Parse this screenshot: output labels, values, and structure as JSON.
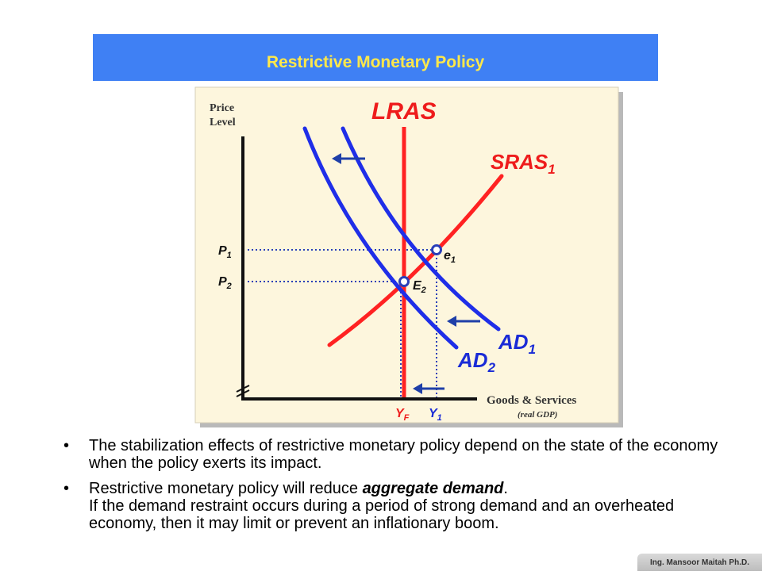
{
  "slide": {
    "title": "Restrictive Monetary Policy",
    "watermark": "Ing. Mansoor Maitah Ph.D."
  },
  "diagram": {
    "y_axis_label_line1": "Price",
    "y_axis_label_line2": "Level",
    "x_axis_label": "Goods & Services",
    "x_axis_sublabel": "(real GDP)",
    "lras_label": "LRAS",
    "sras_label": "SRAS",
    "sras_sub": "1",
    "ad1_label": "AD",
    "ad1_sub": "1",
    "ad2_label": "AD",
    "ad2_sub": "2",
    "p1_label": "P",
    "p1_sub": "1",
    "p2_label": "P",
    "p2_sub": "2",
    "e1_label": "e",
    "e1_sub": "1",
    "e2_label": "E",
    "e2_sub": "2",
    "yf_label": "Y",
    "yf_sub": "F",
    "y1_label": "Y",
    "y1_sub": "1",
    "colors": {
      "panel_bg": "#fdf6dd",
      "ad_curve": "#1f2ee8",
      "supply_curve": "#ff2222",
      "label_red": "#ee1c1c",
      "label_blue": "#1a2bd6",
      "dotted": "#2a3fb8",
      "arrow": "#1f3fa8"
    }
  },
  "bullets": [
    {
      "text": "The stabilization effects of restrictive monetary policy depend on the state of the economy when the policy exerts its impact."
    },
    {
      "text_before": "Restrictive monetary policy will reduce ",
      "emphasis": "aggregate demand",
      "text_after": ".",
      "line2": "If the demand restraint occurs during a period of strong demand and an overheated economy, then it may limit or prevent an inflationary boom."
    }
  ]
}
